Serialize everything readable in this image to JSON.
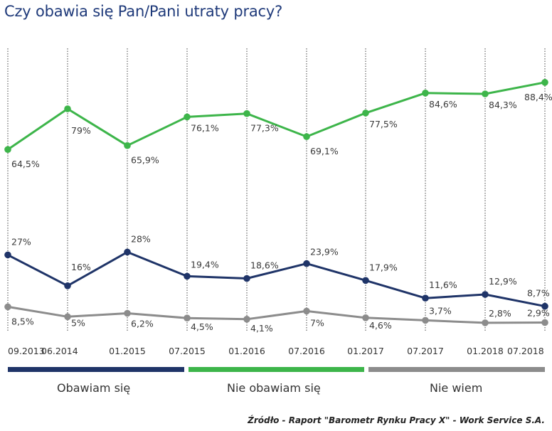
{
  "chart_data": {
    "type": "line",
    "title": "Czy obawia się Pan/Pani utraty pracy?",
    "categories": [
      "09.2013",
      "06.2014",
      "01.2015",
      "07.2015",
      "01.2016",
      "07.2016",
      "01.2017",
      "07.2017",
      "01.2018",
      "07.2018"
    ],
    "tick_labels": [
      "09.2013",
      "06.2014",
      "01.2015",
      "07.2015",
      "01.2016",
      "07.2016",
      "01.2017",
      "07.2017",
      "01.2018",
      "07.2018"
    ],
    "ylim": [
      0,
      100
    ],
    "series": [
      {
        "name": "Obawiam się",
        "color": "#1f3468",
        "values": [
          27,
          16,
          28,
          19.4,
          18.6,
          23.9,
          17.9,
          11.6,
          12.9,
          8.7
        ],
        "labels": [
          "27%",
          "16%",
          "28%",
          "19,4%",
          "18,6%",
          "23,9%",
          "17,9%",
          "11,6%",
          "12,9%",
          "8,7%"
        ]
      },
      {
        "name": "Nie obawiam się",
        "color": "#3db54a",
        "values": [
          64.5,
          79,
          65.9,
          76.1,
          77.3,
          69.1,
          77.5,
          84.6,
          84.3,
          88.4
        ],
        "labels": [
          "64,5%",
          "79%",
          "65,9%",
          "76,1%",
          "77,3%",
          "69,1%",
          "77,5%",
          "84,6%",
          "84,3%",
          "88,4%"
        ]
      },
      {
        "name": "Nie wiem",
        "color": "#8c8c8c",
        "values": [
          8.5,
          5,
          6.2,
          4.5,
          4.1,
          7,
          4.6,
          3.7,
          2.8,
          2.9
        ],
        "labels": [
          "8,5%",
          "5%",
          "6,2%",
          "4,5%",
          "4,1%",
          "7%",
          "4,6%",
          "3,7%",
          "2,8%",
          "2,9%"
        ]
      }
    ],
    "legend": [
      "Obawiam się",
      "Nie obawiam się",
      "Nie wiem"
    ],
    "source": "Źródło - Raport \"Barometr Rynku Pracy X\" - Work Service S.A."
  }
}
